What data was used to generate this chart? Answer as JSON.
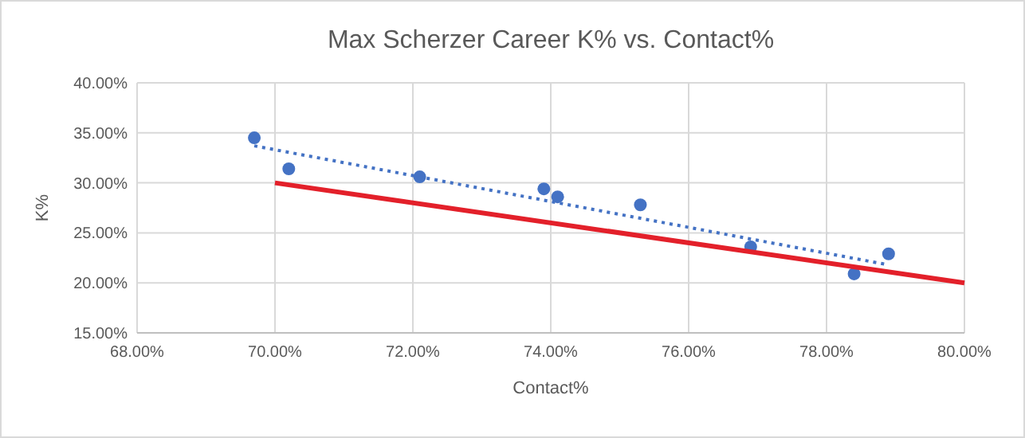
{
  "chart_data": {
    "type": "scatter",
    "title": "Max Scherzer Career K% vs. Contact%",
    "xlabel": "Contact%",
    "ylabel": "K%",
    "xlim": [
      68,
      80
    ],
    "xticks": [
      {
        "value": 68,
        "label": "68.00%"
      },
      {
        "value": 70,
        "label": "70.00%"
      },
      {
        "value": 72,
        "label": "72.00%"
      },
      {
        "value": 74,
        "label": "74.00%"
      },
      {
        "value": 76,
        "label": "76.00%"
      },
      {
        "value": 78,
        "label": "78.00%"
      },
      {
        "value": 80,
        "label": "80.00%"
      }
    ],
    "ylim": [
      15,
      40
    ],
    "yticks": [
      {
        "value": 15,
        "label": "15.00%"
      },
      {
        "value": 20,
        "label": "20.00%"
      },
      {
        "value": 25,
        "label": "25.00%"
      },
      {
        "value": 30,
        "label": "30.00%"
      },
      {
        "value": 35,
        "label": "35.00%"
      },
      {
        "value": 40,
        "label": "40.00%"
      }
    ],
    "grid": true,
    "series": [
      {
        "marker": "circle",
        "color": "#4472c4",
        "x": [
          69.7,
          70.2,
          72.1,
          73.9,
          74.1,
          75.3,
          76.9,
          78.4,
          78.9
        ],
        "values": [
          34.5,
          31.4,
          30.6,
          29.4,
          28.6,
          27.8,
          23.6,
          20.9,
          22.9
        ]
      },
      {
        "type": "line",
        "color": "#4472c4",
        "line_style": "dotted",
        "x": [
          69.7,
          78.9
        ],
        "values": [
          33.7,
          21.8
        ]
      },
      {
        "type": "line",
        "color": "#e3202a",
        "line_style": "solid",
        "x": [
          70,
          80
        ],
        "values": [
          30,
          20
        ]
      }
    ]
  }
}
